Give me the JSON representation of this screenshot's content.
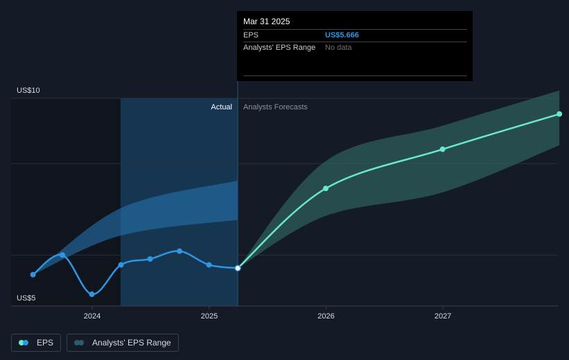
{
  "tooltip": {
    "date": "Mar 31 2025",
    "rows": [
      {
        "label": "EPS",
        "value": "US$5.666"
      },
      {
        "label": "Analysts' EPS Range",
        "value": "No data"
      }
    ]
  },
  "legend": {
    "eps_label": "EPS",
    "range_label": "Analysts' EPS Range"
  },
  "colors": {
    "background": "#151b26",
    "eps_actual": "#2f96e4",
    "eps_forecast": "#6be6cf",
    "range_band": "#2d5e5c",
    "actual_highlight": "#163551"
  },
  "chart_data": {
    "type": "line",
    "section_labels": {
      "actual": "Actual",
      "forecast": "Analysts Forecasts"
    },
    "y_tick_labels": [
      "US$10",
      "US$5"
    ],
    "x_tick_labels": [
      "2024",
      "2025",
      "2026",
      "2027"
    ],
    "xlim": [
      "2023-06-01",
      "2027-12-31"
    ],
    "ylim": [
      4.7,
      10.0
    ],
    "series": [
      {
        "name": "EPS",
        "points": [
          [
            "2023-06-30",
            5.5
          ],
          [
            "2023-09-30",
            6.0
          ],
          [
            "2023-12-31",
            5.0
          ],
          [
            "2024-03-31",
            5.75
          ],
          [
            "2024-06-30",
            5.9
          ],
          [
            "2024-09-30",
            6.1
          ],
          [
            "2024-12-31",
            5.75
          ],
          [
            "2025-03-31",
            5.666
          ]
        ]
      },
      {
        "name": "EPS Forecast",
        "points": [
          [
            "2025-03-31",
            5.666
          ],
          [
            "2025-12-31",
            7.7
          ],
          [
            "2026-12-31",
            8.7
          ],
          [
            "2027-12-31",
            9.6
          ]
        ]
      }
    ],
    "actual_range": {
      "upper": [
        [
          "2023-06-30",
          5.5
        ],
        [
          "2024-03-31",
          7.2
        ],
        [
          "2025-03-31",
          7.9
        ]
      ],
      "lower": [
        [
          "2023-06-30",
          5.5
        ],
        [
          "2024-03-31",
          6.5
        ],
        [
          "2025-03-31",
          6.9
        ]
      ]
    },
    "forecast_range": {
      "upper": [
        [
          "2025-03-31",
          5.666
        ],
        [
          "2025-12-31",
          8.4
        ],
        [
          "2026-12-31",
          9.3
        ],
        [
          "2027-12-31",
          10.2
        ]
      ],
      "lower": [
        [
          "2025-03-31",
          5.666
        ],
        [
          "2025-12-31",
          7.0
        ],
        [
          "2026-12-31",
          7.6
        ],
        [
          "2027-12-31",
          8.8
        ]
      ]
    }
  }
}
